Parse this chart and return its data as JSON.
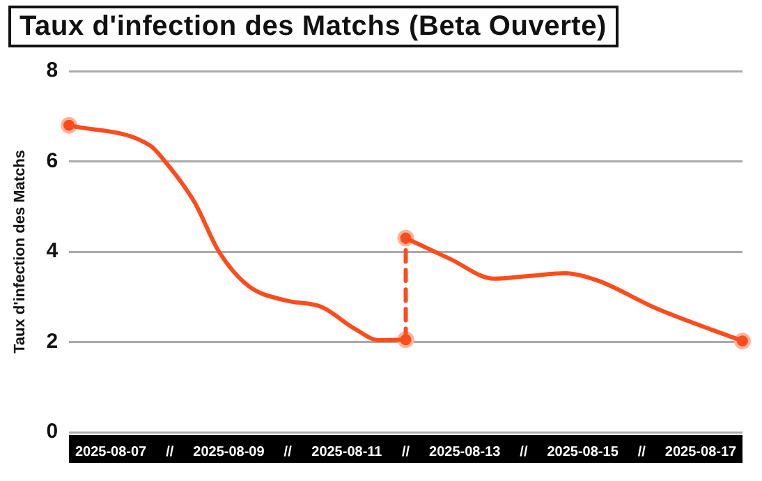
{
  "chart_data": {
    "type": "line",
    "title": "Taux d'infection des Matchs (Beta Ouverte)",
    "ylabel": "Taux d'infection des Matchs",
    "xlim": [
      "2025-08-06T19:00",
      "2025-08-18T05:00"
    ],
    "xticks": [
      {
        "value": "2025-08-07T12:00",
        "label": "2025-08-07"
      },
      {
        "value": "2025-08-08T12:00",
        "label": "//"
      },
      {
        "value": "2025-08-09T12:00",
        "label": "2025-08-09"
      },
      {
        "value": "2025-08-10T12:00",
        "label": "//"
      },
      {
        "value": "2025-08-11T12:00",
        "label": "2025-08-11"
      },
      {
        "value": "2025-08-12T12:00",
        "label": "//"
      },
      {
        "value": "2025-08-13T12:00",
        "label": "2025-08-13"
      },
      {
        "value": "2025-08-14T12:00",
        "label": "//"
      },
      {
        "value": "2025-08-15T12:00",
        "label": "2025-08-15"
      },
      {
        "value": "2025-08-16T12:00",
        "label": "//"
      },
      {
        "value": "2025-08-17T12:00",
        "label": "2025-08-17"
      }
    ],
    "ylim": [
      0,
      8
    ],
    "yticks": [
      0,
      2,
      4,
      6,
      8
    ],
    "grid": "y",
    "legend": false,
    "series": [
      {
        "color": "#fc4c1c",
        "marker": "none",
        "line_style": "solid",
        "x": [
          "2025-08-06T19:00",
          "2025-08-08T04:00",
          "2025-08-08T09:00",
          "2025-08-08T22:00",
          "2025-08-09T08:00",
          "2025-08-09T20:00",
          "2025-08-10T11:00",
          "2025-08-11T02:00",
          "2025-08-11T15:00",
          "2025-08-12T01:00",
          "2025-08-12T12:00"
        ],
        "values": [
          6.8,
          6.35,
          6.07,
          5.1,
          4.0,
          3.24,
          2.92,
          2.77,
          2.3,
          2.04,
          2.05
        ]
      },
      {
        "color": "#fc4c1c",
        "marker": "none",
        "line_style": "solid",
        "x": [
          "2025-08-12T12:00",
          "2025-08-13T06:00",
          "2025-08-14T00:00",
          "2025-08-14T14:00",
          "2025-08-15T05:00",
          "2025-08-15T18:00",
          "2025-08-16T18:00",
          "2025-08-18T05:00"
        ],
        "values": [
          4.3,
          3.84,
          3.4,
          3.46,
          3.52,
          3.36,
          2.74,
          2.02
        ]
      },
      {
        "color": "#fc4c1c",
        "marker": "none",
        "line_style": "dashed",
        "x": [
          "2025-08-12T12:00",
          "2025-08-12T12:00"
        ],
        "values": [
          2.05,
          4.3
        ]
      },
      {
        "type": "scatter",
        "color": "#fc4c1c",
        "marker": "circle",
        "x": [
          "2025-08-06T19:00",
          "2025-08-12T12:00",
          "2025-08-12T12:00",
          "2025-08-18T05:00"
        ],
        "values": [
          6.8,
          2.05,
          4.3,
          2.02
        ]
      }
    ]
  }
}
